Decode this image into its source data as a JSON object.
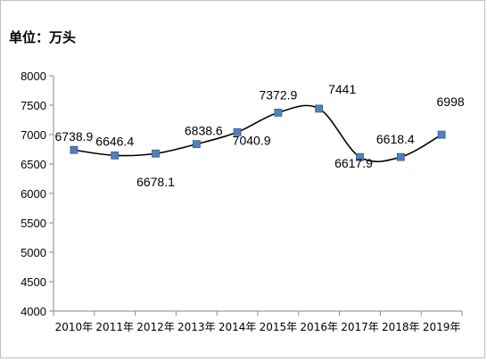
{
  "unit_label": "单位：万头",
  "chart_data": {
    "type": "line",
    "title": "",
    "xlabel": "",
    "ylabel": "",
    "categories": [
      "2010年",
      "2011年",
      "2012年",
      "2013年",
      "2014年",
      "2015年",
      "2016年",
      "2017年",
      "2018年",
      "2019年"
    ],
    "values": [
      6738.9,
      6646.4,
      6678.1,
      6838.6,
      7040.9,
      7372.9,
      7441,
      6617.9,
      6618.4,
      6998
    ],
    "data_labels": [
      "6738.9",
      "6646.4",
      "6678.1",
      "6838.6",
      "7040.9",
      "7372.9",
      "7441",
      "6617.9",
      "6618.4",
      "6998"
    ],
    "ylim": [
      4000,
      8000
    ],
    "yticks": [
      4000,
      4500,
      5000,
      5500,
      6000,
      6500,
      7000,
      7500,
      8000
    ],
    "grid": false,
    "smooth": true,
    "line_color": "#000000",
    "marker_color": "#4f81bd",
    "marker": "square"
  }
}
